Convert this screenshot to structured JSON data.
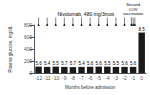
{
  "chart_data": {
    "type": "bar",
    "categories": [
      "-12",
      "-11",
      "-10",
      "-9",
      "-8",
      "-7",
      "-6",
      "-5",
      "-4",
      "-3",
      "-2",
      "-1",
      "0"
    ],
    "values": [
      108,
      103,
      108,
      103,
      100,
      103,
      105,
      108,
      108,
      103,
      103,
      103,
      675
    ],
    "hba1c": [
      "5.6",
      "5.4",
      "5.5",
      "5.7",
      "5.7",
      "5.4",
      "5.6",
      "5.6",
      "5.5",
      "5.5",
      "5.6",
      "5.6",
      "8.5"
    ],
    "color": "#1a1a1a",
    "xlabel": "Months before admission",
    "ylabel": "Plasma glucose, mg/dL",
    "ylim": [
      0,
      800
    ],
    "yticks": [
      0,
      200,
      400,
      600,
      800
    ],
    "grid": false,
    "annotations": [
      {
        "text": "Nivolumab, 480 mg/3mos",
        "categories": [
          "-12",
          "-11",
          "-10",
          "-9",
          "-8",
          "-7",
          "-6",
          "-5",
          "-4",
          "-3",
          "-2",
          "-1"
        ]
      },
      {
        "text": "Second\nCOV\nvaccination",
        "categories": [
          "-1",
          "-1"
        ]
      }
    ]
  }
}
